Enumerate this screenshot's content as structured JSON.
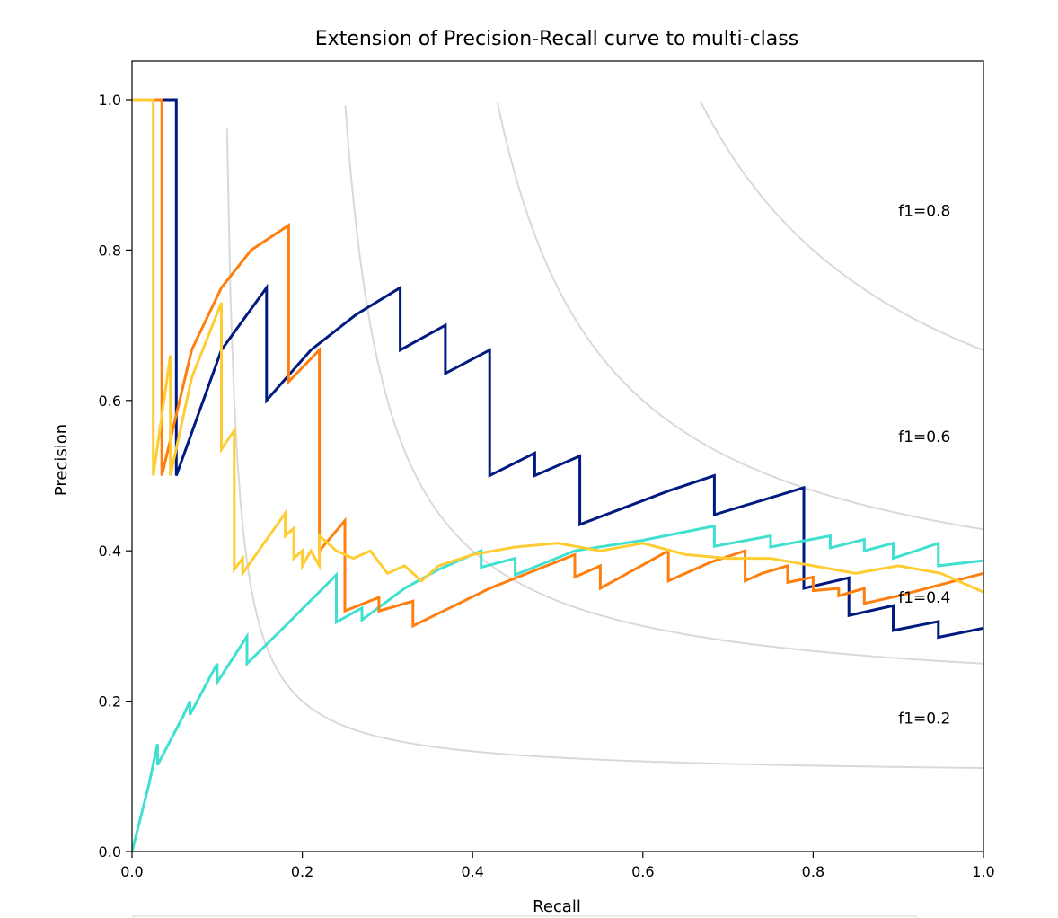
{
  "chart_data": {
    "type": "line",
    "title": "Extension of Precision-Recall curve to multi-class",
    "xlabel": "Recall",
    "ylabel": "Precision",
    "xlim": [
      0.0,
      1.0
    ],
    "ylim": [
      0.0,
      1.05
    ],
    "x_ticks": [
      "0.0",
      "0.2",
      "0.4",
      "0.6",
      "0.8",
      "1.0"
    ],
    "y_ticks": [
      "0.0",
      "0.2",
      "0.4",
      "0.6",
      "0.8",
      "1.0"
    ],
    "grid": false,
    "iso_f1": [
      {
        "f": 0.2,
        "label": "f1=0.2"
      },
      {
        "f": 0.4,
        "label": "f1=0.4"
      },
      {
        "f": 0.6,
        "label": "f1=0.6"
      },
      {
        "f": 0.8,
        "label": "f1=0.8"
      }
    ],
    "iso_color": "#d9d9d9",
    "series": [
      {
        "color": "#001a7f",
        "points": [
          [
            0,
            1.0
          ],
          [
            0.052,
            1.0
          ],
          [
            0.052,
            0.5
          ],
          [
            0.105,
            0.667
          ],
          [
            0.158,
            0.75
          ],
          [
            0.158,
            0.6
          ],
          [
            0.21,
            0.667
          ],
          [
            0.263,
            0.714
          ],
          [
            0.315,
            0.75
          ],
          [
            0.315,
            0.667
          ],
          [
            0.368,
            0.7
          ],
          [
            0.368,
            0.636
          ],
          [
            0.42,
            0.667
          ],
          [
            0.42,
            0.5
          ],
          [
            0.473,
            0.53
          ],
          [
            0.473,
            0.5
          ],
          [
            0.526,
            0.526
          ],
          [
            0.526,
            0.435
          ],
          [
            0.631,
            0.48
          ],
          [
            0.684,
            0.5
          ],
          [
            0.684,
            0.448
          ],
          [
            0.789,
            0.484
          ],
          [
            0.789,
            0.35
          ],
          [
            0.842,
            0.364
          ],
          [
            0.842,
            0.314
          ],
          [
            0.894,
            0.327
          ],
          [
            0.894,
            0.294
          ],
          [
            0.947,
            0.306
          ],
          [
            0.947,
            0.285
          ],
          [
            1.0,
            0.297
          ]
        ]
      },
      {
        "color": "#40e0d0",
        "points": [
          [
            0,
            0.0
          ],
          [
            0.02,
            0.09
          ],
          [
            0.03,
            0.143
          ],
          [
            0.03,
            0.115
          ],
          [
            0.06,
            0.18
          ],
          [
            0.068,
            0.2
          ],
          [
            0.068,
            0.182
          ],
          [
            0.1,
            0.25
          ],
          [
            0.1,
            0.225
          ],
          [
            0.135,
            0.286
          ],
          [
            0.135,
            0.25
          ],
          [
            0.18,
            0.3
          ],
          [
            0.24,
            0.368
          ],
          [
            0.24,
            0.305
          ],
          [
            0.27,
            0.324
          ],
          [
            0.27,
            0.308
          ],
          [
            0.32,
            0.35
          ],
          [
            0.36,
            0.375
          ],
          [
            0.41,
            0.4
          ],
          [
            0.41,
            0.378
          ],
          [
            0.45,
            0.39
          ],
          [
            0.45,
            0.368
          ],
          [
            0.52,
            0.4
          ],
          [
            0.6,
            0.414
          ],
          [
            0.684,
            0.433
          ],
          [
            0.684,
            0.406
          ],
          [
            0.75,
            0.42
          ],
          [
            0.75,
            0.405
          ],
          [
            0.82,
            0.42
          ],
          [
            0.82,
            0.404
          ],
          [
            0.86,
            0.415
          ],
          [
            0.86,
            0.4
          ],
          [
            0.894,
            0.41
          ],
          [
            0.894,
            0.39
          ],
          [
            0.947,
            0.41
          ],
          [
            0.947,
            0.38
          ],
          [
            1.0,
            0.387
          ]
        ]
      },
      {
        "color": "#ff7f0e",
        "points": [
          [
            0,
            1.0
          ],
          [
            0.035,
            1.0
          ],
          [
            0.035,
            0.5
          ],
          [
            0.07,
            0.667
          ],
          [
            0.105,
            0.75
          ],
          [
            0.14,
            0.8
          ],
          [
            0.184,
            0.833
          ],
          [
            0.184,
            0.625
          ],
          [
            0.22,
            0.667
          ],
          [
            0.22,
            0.4
          ],
          [
            0.25,
            0.44
          ],
          [
            0.25,
            0.32
          ],
          [
            0.29,
            0.338
          ],
          [
            0.29,
            0.32
          ],
          [
            0.33,
            0.333
          ],
          [
            0.33,
            0.3
          ],
          [
            0.42,
            0.35
          ],
          [
            0.52,
            0.395
          ],
          [
            0.52,
            0.365
          ],
          [
            0.55,
            0.38
          ],
          [
            0.55,
            0.35
          ],
          [
            0.63,
            0.4
          ],
          [
            0.63,
            0.36
          ],
          [
            0.68,
            0.385
          ],
          [
            0.72,
            0.4
          ],
          [
            0.72,
            0.36
          ],
          [
            0.74,
            0.37
          ],
          [
            0.77,
            0.38
          ],
          [
            0.77,
            0.358
          ],
          [
            0.8,
            0.365
          ],
          [
            0.8,
            0.347
          ],
          [
            0.83,
            0.35
          ],
          [
            0.83,
            0.34
          ],
          [
            0.86,
            0.35
          ],
          [
            0.86,
            0.33
          ],
          [
            0.9,
            0.34
          ],
          [
            1.0,
            0.37
          ]
        ]
      },
      {
        "color": "#ffcc33",
        "points": [
          [
            0,
            1.0
          ],
          [
            0.025,
            1.0
          ],
          [
            0.025,
            0.5
          ],
          [
            0.045,
            0.66
          ],
          [
            0.045,
            0.5
          ],
          [
            0.07,
            0.63
          ],
          [
            0.105,
            0.73
          ],
          [
            0.105,
            0.535
          ],
          [
            0.12,
            0.56
          ],
          [
            0.12,
            0.375
          ],
          [
            0.13,
            0.39
          ],
          [
            0.13,
            0.37
          ],
          [
            0.18,
            0.45
          ],
          [
            0.18,
            0.42
          ],
          [
            0.19,
            0.43
          ],
          [
            0.19,
            0.39
          ],
          [
            0.2,
            0.4
          ],
          [
            0.2,
            0.38
          ],
          [
            0.21,
            0.4
          ],
          [
            0.22,
            0.38
          ],
          [
            0.22,
            0.42
          ],
          [
            0.24,
            0.4
          ],
          [
            0.26,
            0.39
          ],
          [
            0.28,
            0.4
          ],
          [
            0.3,
            0.37
          ],
          [
            0.32,
            0.38
          ],
          [
            0.34,
            0.36
          ],
          [
            0.36,
            0.38
          ],
          [
            0.4,
            0.395
          ],
          [
            0.45,
            0.405
          ],
          [
            0.5,
            0.41
          ],
          [
            0.55,
            0.4
          ],
          [
            0.6,
            0.41
          ],
          [
            0.65,
            0.395
          ],
          [
            0.7,
            0.39
          ],
          [
            0.75,
            0.39
          ],
          [
            0.8,
            0.38
          ],
          [
            0.85,
            0.37
          ],
          [
            0.9,
            0.38
          ],
          [
            0.95,
            0.37
          ],
          [
            1.0,
            0.345
          ]
        ]
      }
    ]
  }
}
